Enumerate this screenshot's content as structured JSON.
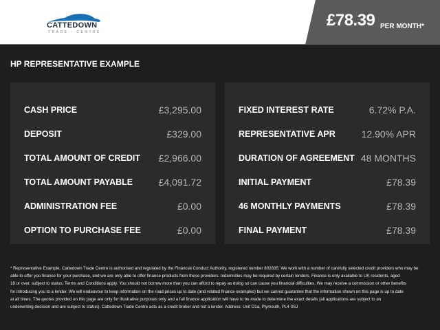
{
  "header": {
    "logo_text": "CATTEDOWN",
    "logo_sub": "TRADE - CENTRE",
    "price": "£78.39",
    "per_month": "PER MONTH*"
  },
  "title": "HP REPRESENTATIVE EXAMPLE",
  "left": [
    {
      "label": "CASH PRICE",
      "value": "£3,295.00"
    },
    {
      "label": "DEPOSIT",
      "value": "£329.00"
    },
    {
      "label": "TOTAL AMOUNT OF CREDIT",
      "value": "£2,966.00"
    },
    {
      "label": "TOTAL AMOUNT PAYABLE",
      "value": "£4,091.72"
    },
    {
      "label": "ADMINISTRATION FEE",
      "value": "£0.00"
    },
    {
      "label": "OPTION TO PURCHASE FEE",
      "value": "£0.00"
    }
  ],
  "right": [
    {
      "label": "FIXED INTEREST RATE",
      "value": "6.72% P.A."
    },
    {
      "label": "REPRESENTATIVE APR",
      "value": "12.90% APR"
    },
    {
      "label": "DURATION OF AGREEMENT",
      "value": "48 MONTHS"
    },
    {
      "label": "INITIAL PAYMENT",
      "value": "£78.39"
    },
    {
      "label": "46 MONTHLY PAYMENTS",
      "value": "£78.39"
    },
    {
      "label": "FINAL PAYMENT",
      "value": "£78.39"
    }
  ],
  "footer": [
    "* Representative Example. Cattedown Trade Centre is authorised and regulated by the Financial Conduct Authority, registered number 802835. We work with a number of carefully selected credit providers who may be",
    "able to offer you finance for your purchase, and we are only able to offer finance products from these providers. Indemnities may be required by certain lenders. Finance is only available to UK residents, aged",
    "18 or over, subject to status. Terms and Conditions apply. You should not borrow more than you can afford to repay as doing so can cause you financial difficulties. We may receive a commission or other benefits",
    "for introducing you to a lender. We will endeavour to keep information on the road prices up to date (and related finance examples) but we cannot guarantee that the information shown on this page is up to date",
    "at all times. The quotes provided on this page are only for illustrative purposes only and a full finance application will have to be made to determine the exact details (all applications are subject to an",
    "underwriting decision and are subject to status). Cattedown Trade Centre acts as a credit broker and not a lender. Address: Unit D1a, Plymouth, PL4 0SJ"
  ]
}
